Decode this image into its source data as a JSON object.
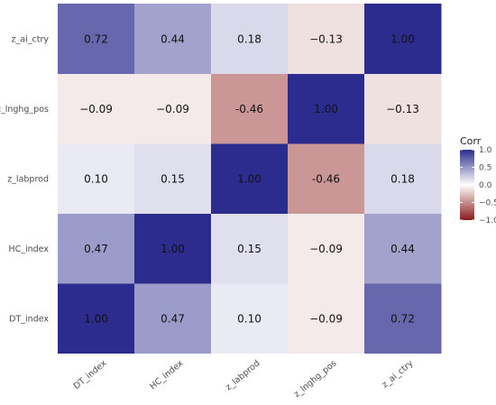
{
  "chart_data": {
    "type": "heatmap",
    "x_categories": [
      "DT_index",
      "HC_index",
      "z_labprod",
      "z_lnghg_pos",
      "z_ai_ctry"
    ],
    "y_categories": [
      "DT_index",
      "HC_index",
      "z_labprod",
      "z_lnghg_pos",
      "z_ai_ctry"
    ],
    "matrix": [
      [
        1.0,
        0.47,
        0.1,
        -0.09,
        0.72
      ],
      [
        0.47,
        1.0,
        0.15,
        -0.09,
        0.44
      ],
      [
        0.1,
        0.15,
        1.0,
        -0.46,
        0.18
      ],
      [
        -0.09,
        -0.09,
        -0.46,
        1.0,
        -0.13
      ],
      [
        0.72,
        0.44,
        0.18,
        -0.13,
        1.0
      ]
    ],
    "cell_labels": [
      [
        "1.00",
        "0.47",
        "0.10",
        "−0.09",
        "0.72"
      ],
      [
        "0.47",
        "1.00",
        "0.15",
        "−0.09",
        "0.44"
      ],
      [
        "0.10",
        "0.15",
        "1.00",
        "-0.46",
        "0.18"
      ],
      [
        "−0.09",
        "−0.09",
        "-0.46",
        "1.00",
        "−0.13"
      ],
      [
        "0.72",
        "0.44",
        "0.18",
        "−0.13",
        "1.00"
      ]
    ],
    "legend": {
      "title": "Corr",
      "ticks": [
        1.0,
        0.5,
        0.0,
        -0.5,
        -1.0
      ],
      "tick_labels": [
        "1.0",
        "0.5",
        "0.0",
        "−0.5",
        "−1.0"
      ],
      "placement": "right"
    },
    "color_scale": {
      "low": "#8b1a1a",
      "mid": "#ffffff",
      "high": "#2c2c8e",
      "range": [
        -1,
        1
      ]
    },
    "grid": false
  }
}
